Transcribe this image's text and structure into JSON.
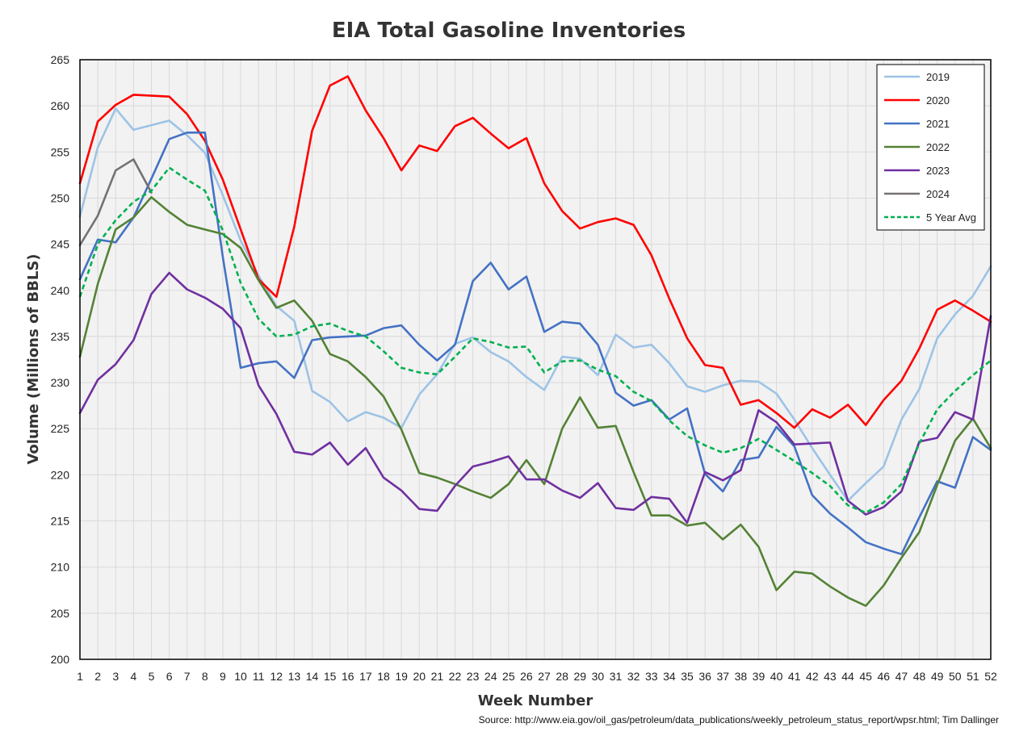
{
  "chart_data": {
    "type": "line",
    "title": "EIA Total Gasoline Inventories",
    "xlabel": "Week Number",
    "ylabel": "Volume (Millions of BBLS)",
    "xlim": [
      1,
      52
    ],
    "ylim": [
      200,
      265
    ],
    "yticks": [
      200,
      205,
      210,
      215,
      220,
      225,
      230,
      235,
      240,
      245,
      250,
      255,
      260,
      265
    ],
    "grid": true,
    "legend_position": "top-right",
    "x": [
      1,
      2,
      3,
      4,
      5,
      6,
      7,
      8,
      9,
      10,
      11,
      12,
      13,
      14,
      15,
      16,
      17,
      18,
      19,
      20,
      21,
      22,
      23,
      24,
      25,
      26,
      27,
      28,
      29,
      30,
      31,
      32,
      33,
      34,
      35,
      36,
      37,
      38,
      39,
      40,
      41,
      42,
      43,
      44,
      45,
      46,
      47,
      48,
      49,
      50,
      51,
      52
    ],
    "series": [
      {
        "name": "2019",
        "color": "#9dc3e6",
        "dash": false,
        "values": [
          248,
          255.5,
          259.7,
          257.4,
          257.9,
          258.4,
          256.8,
          254.9,
          250.3,
          245.4,
          241.6,
          238.3,
          236.7,
          229.1,
          227.9,
          225.8,
          226.8,
          226.2,
          225.1,
          228.7,
          230.9,
          234.2,
          234.9,
          233.3,
          232.3,
          230.6,
          229.2,
          232.8,
          232.6,
          230.8,
          235.2,
          233.8,
          234.1,
          232.1,
          229.6,
          229,
          229.7,
          230.2,
          230.1,
          228.8,
          226,
          222.9,
          220,
          217.2,
          219.1,
          220.9,
          226,
          229.3,
          234.8,
          237.4,
          239.4,
          242.6
        ]
      },
      {
        "name": "2020",
        "color": "#ff0000",
        "dash": false,
        "values": [
          251.6,
          258.3,
          260.1,
          261.2,
          261.1,
          261,
          259.1,
          256.2,
          252,
          246.6,
          241.2,
          239.3,
          246.9,
          257.3,
          262.2,
          263.2,
          259.5,
          256.5,
          253,
          255.7,
          255.1,
          257.8,
          258.7,
          257,
          255.4,
          256.5,
          251.6,
          248.6,
          246.7,
          247.4,
          247.8,
          247.1,
          243.8,
          239.1,
          234.8,
          231.9,
          231.6,
          227.6,
          228.1,
          226.7,
          225.1,
          227.1,
          226.2,
          227.6,
          225.4,
          228.1,
          230.2,
          233.7,
          237.9,
          238.9,
          237.8,
          236.6
        ]
      },
      {
        "name": "2021",
        "color": "#4472c4",
        "dash": false,
        "values": [
          241.2,
          245.5,
          245.2,
          247.9,
          252.1,
          256.4,
          257.1,
          257.1,
          243.6,
          231.6,
          232.1,
          232.3,
          230.5,
          234.6,
          234.9,
          235,
          235.1,
          235.9,
          236.2,
          234.1,
          232.4,
          234.1,
          241,
          243,
          240.1,
          241.5,
          235.5,
          236.6,
          236.4,
          234.1,
          228.9,
          227.5,
          228.1,
          226,
          227.2,
          220.1,
          218.2,
          221.6,
          221.9,
          225.2,
          223.1,
          217.8,
          215.8,
          214.3,
          212.7,
          212,
          211.4,
          215.4,
          219.3,
          218.6,
          224.1,
          222.7
        ]
      },
      {
        "name": "2022",
        "color": "#548235",
        "dash": false,
        "values": [
          232.8,
          240.7,
          246.6,
          247.9,
          250.1,
          248.5,
          247.1,
          246.6,
          246.1,
          244.6,
          241.1,
          238.1,
          238.9,
          236.7,
          233.1,
          232.3,
          230.6,
          228.5,
          224.9,
          220.2,
          219.7,
          219,
          218.2,
          217.5,
          219,
          221.6,
          219,
          225,
          228.4,
          225.1,
          225.3,
          220.3,
          215.6,
          215.6,
          214.5,
          214.8,
          213,
          214.6,
          212.2,
          207.5,
          209.5,
          209.3,
          207.9,
          206.7,
          205.8,
          208,
          211,
          213.8,
          218.9,
          223.7,
          226.1,
          222.9
        ]
      },
      {
        "name": "2023",
        "color": "#7030a0",
        "dash": false,
        "values": [
          226.7,
          230.3,
          232,
          234.6,
          239.6,
          241.9,
          240.1,
          239.2,
          238,
          235.9,
          229.7,
          226.6,
          222.5,
          222.2,
          223.5,
          221.1,
          222.9,
          219.7,
          218.3,
          216.3,
          216.1,
          218.8,
          220.9,
          221.4,
          222,
          219.5,
          219.5,
          218.3,
          217.5,
          219.1,
          216.4,
          216.2,
          217.6,
          217.4,
          214.8,
          220.3,
          219.4,
          220.5,
          227,
          225.7,
          223.3,
          223.4,
          223.5,
          217.2,
          215.7,
          216.5,
          218.2,
          223.6,
          224,
          226.8,
          226,
          237.2
        ]
      },
      {
        "name": "2024",
        "color": "#767171",
        "dash": false,
        "values": [
          244.9,
          248.1,
          253,
          254.2,
          250.6,
          null,
          null,
          null,
          null,
          null,
          null,
          null,
          null,
          null,
          null,
          null,
          null,
          null,
          null,
          null,
          null,
          null,
          null,
          null,
          null,
          null,
          null,
          null,
          null,
          null,
          null,
          null,
          null,
          null,
          null,
          null,
          null,
          null,
          null,
          null,
          null,
          null,
          null,
          null,
          null,
          null,
          null,
          null,
          null,
          null,
          null,
          null
        ]
      },
      {
        "name": "5 Year Avg",
        "color": "#00b050",
        "dash": true,
        "values": [
          239.3,
          245,
          247.6,
          249.6,
          250.8,
          253.3,
          252,
          250.8,
          246.5,
          240.8,
          236.9,
          235,
          235.2,
          236.1,
          236.4,
          235.6,
          235,
          233.4,
          231.6,
          231.1,
          230.9,
          232.8,
          234.8,
          234.4,
          233.8,
          233.9,
          231.1,
          232.3,
          232.4,
          231.4,
          230.7,
          229,
          228,
          225.9,
          224.2,
          223.2,
          222.4,
          222.9,
          223.9,
          222.7,
          221.5,
          220.2,
          218.8,
          216.7,
          215.9,
          217,
          219,
          223.4,
          227.1,
          229.1,
          230.8,
          232.4
        ]
      }
    ],
    "source": "Source: http://www.eia.gov/oil_gas/petroleum/data_publications/weekly_petroleum_status_report/wpsr.html; Tim Dallinger"
  }
}
